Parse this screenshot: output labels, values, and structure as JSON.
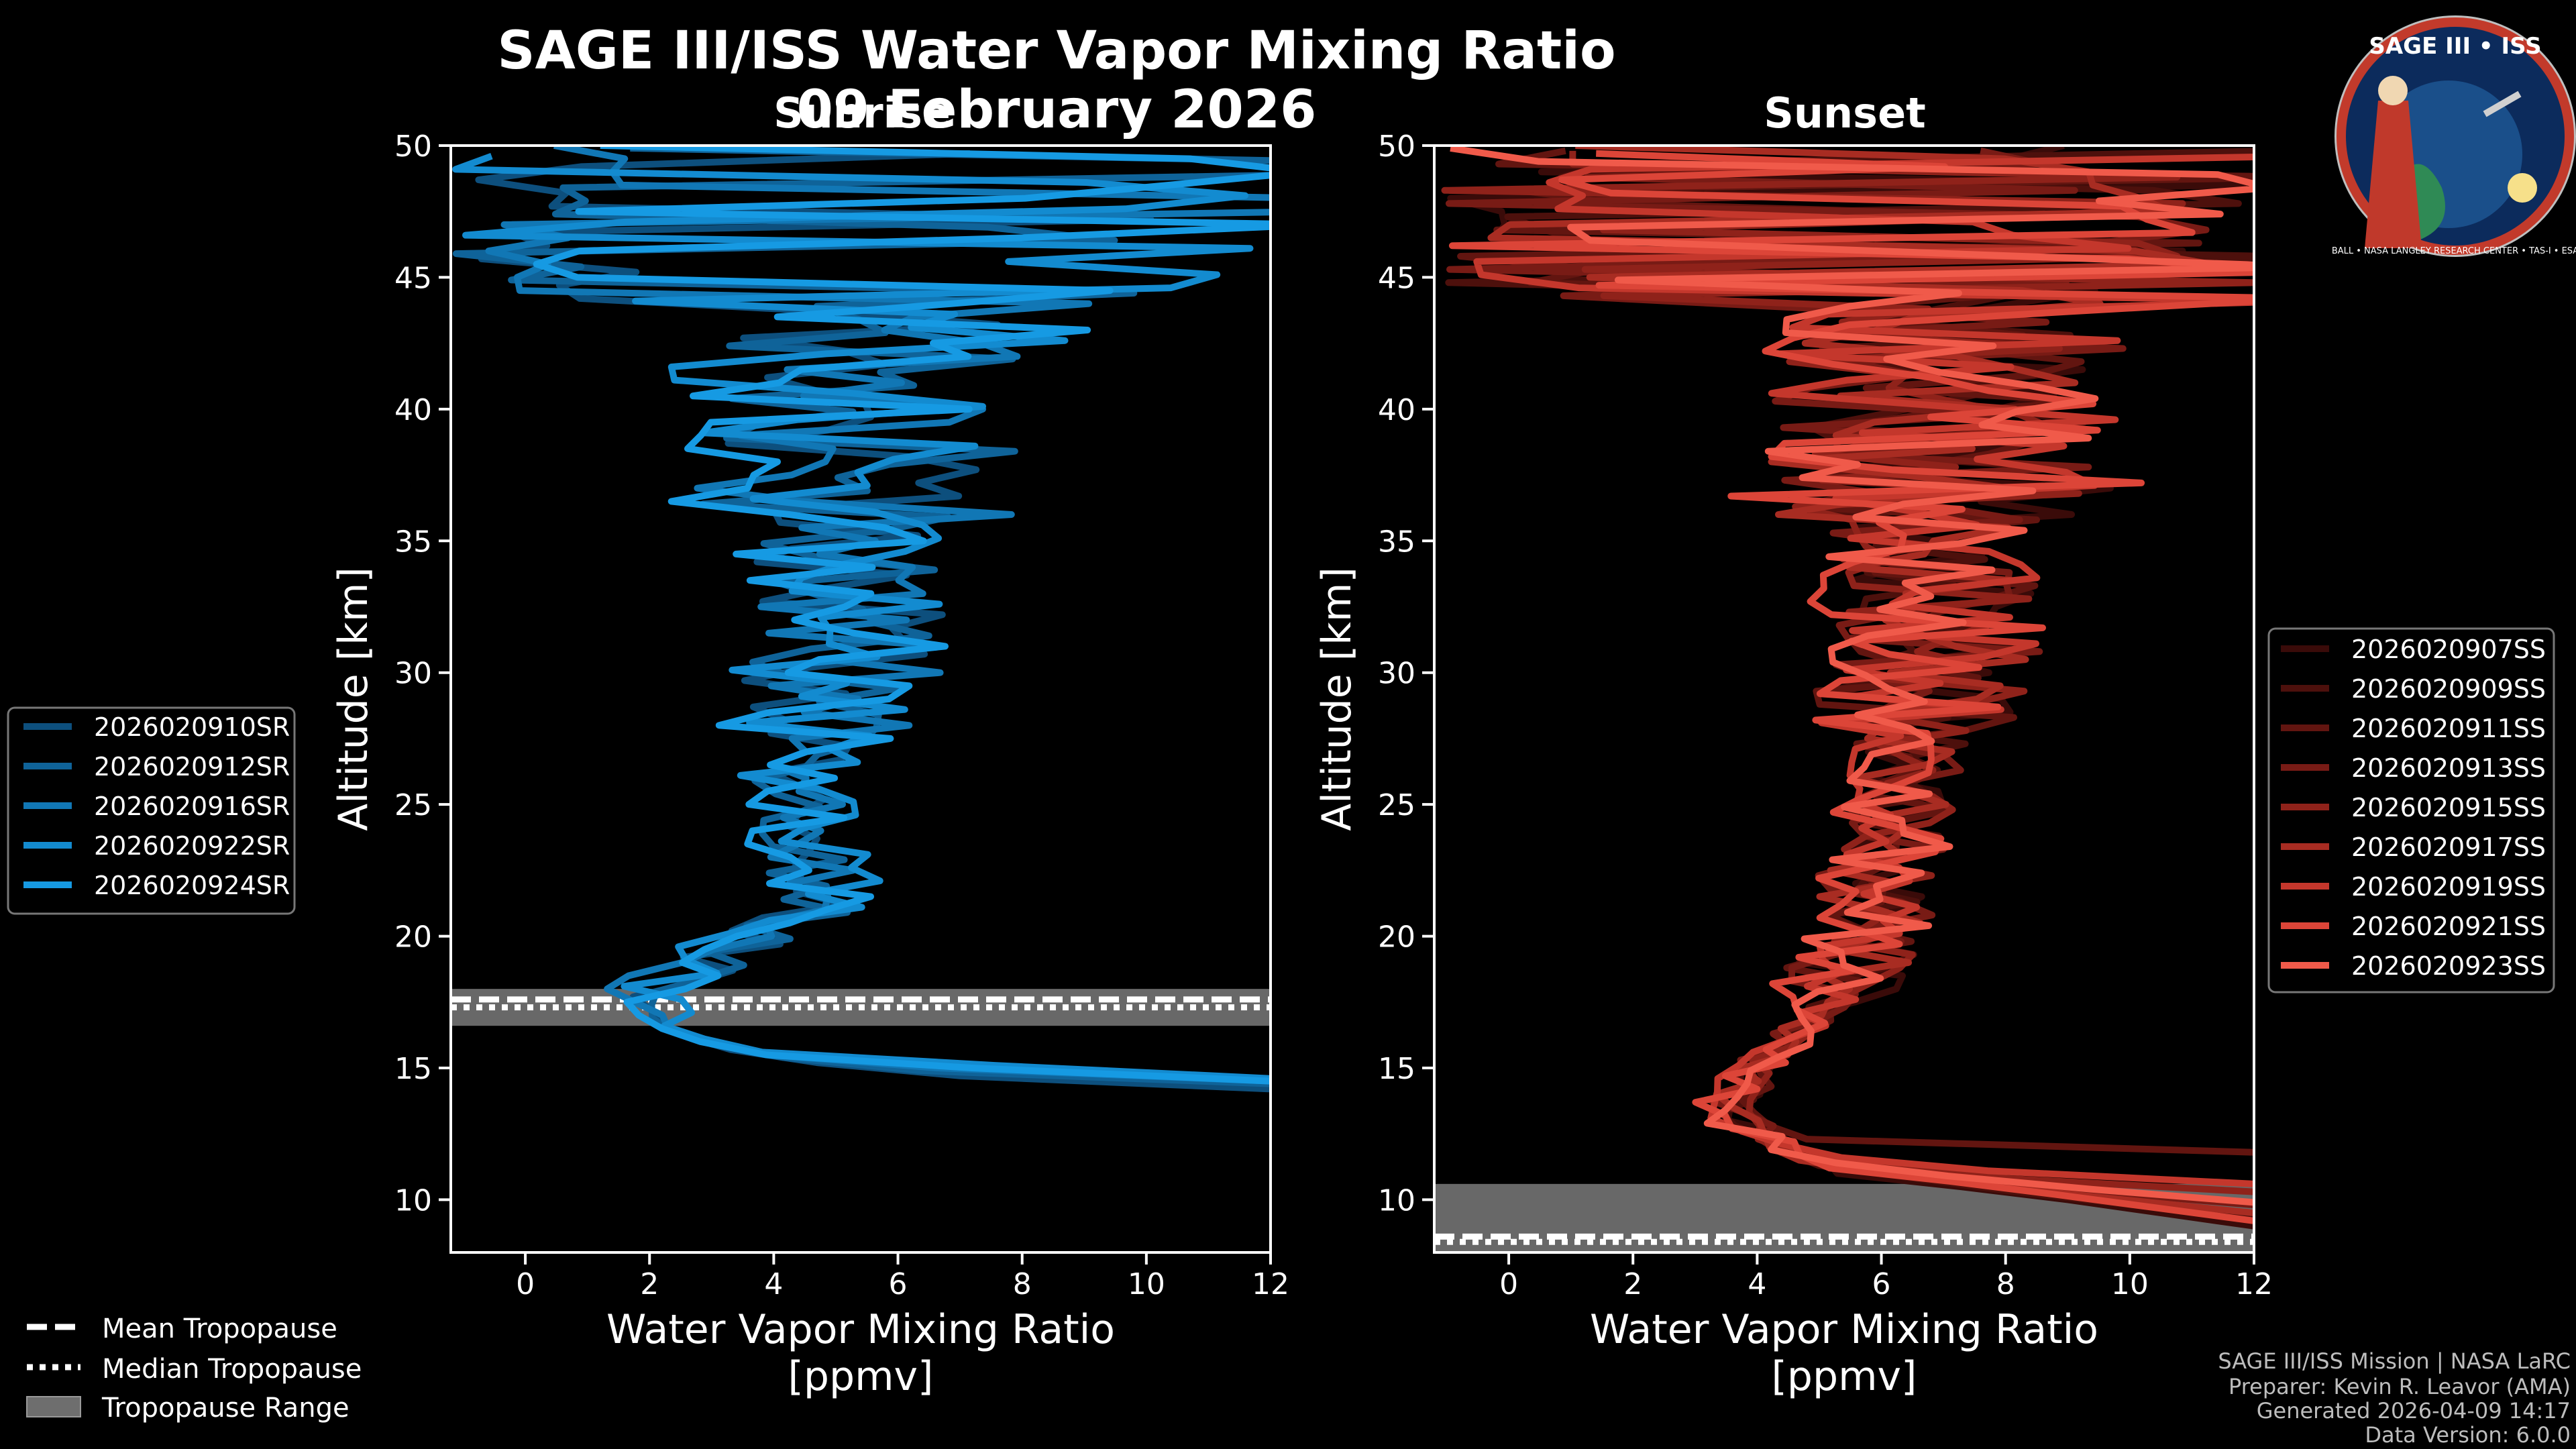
{
  "main_title": "SAGE III/ISS Water Vapor Mixing Ratio",
  "date": "09 February 2026",
  "credits": [
    "SAGE III/ISS Mission | NASA LaRC",
    "Preparer: Kevin R. Leavor (AMA)",
    "Generated 2026-04-09 14:17",
    "Data Version: 6.0.0"
  ],
  "logo": {
    "title": "SAGE III • ISS",
    "ring_text": "BALL • NASA LANGLEY RESEARCH CENTER • TAS-I • ESA"
  },
  "tropo_legend": [
    {
      "label": "Mean Tropopause",
      "style": "dashed"
    },
    {
      "label": "Median Tropopause",
      "style": "dotted"
    },
    {
      "label": "Tropopause Range",
      "style": "patch"
    }
  ],
  "chart_data": [
    {
      "type": "line",
      "panel": "sunrise",
      "title": "Sunrise",
      "xlabel": [
        "Water Vapor Mixing Ratio",
        "[ppmv]"
      ],
      "ylabel": "Altitude [km]",
      "xlim": [
        -1.2,
        12
      ],
      "ylim": [
        8,
        50
      ],
      "xticks": [
        0,
        2,
        4,
        6,
        8,
        10,
        12
      ],
      "yticks": [
        10,
        15,
        20,
        25,
        30,
        35,
        40,
        45,
        50
      ],
      "tropopause": {
        "range": [
          16.6,
          18.0
        ],
        "mean": 17.6,
        "median": 17.3
      },
      "series": [
        {
          "name": "2026020910SR",
          "color": "#0d4f7d",
          "seed": 11,
          "noise_scale": 1.0,
          "lower": [
            [
              14.2,
              12
            ],
            [
              14.8,
              6.0
            ],
            [
              15.6,
              3.4
            ],
            [
              16.5,
              2.5
            ],
            [
              17.5,
              2.0
            ],
            [
              18.3,
              2.3
            ],
            [
              19.5,
              3.6
            ],
            [
              21.5,
              4.8
            ],
            [
              24,
              4.4
            ],
            [
              28,
              4.8
            ],
            [
              33,
              5.3
            ],
            [
              38,
              5.0
            ],
            [
              42,
              5.2
            ],
            [
              44,
              7.0
            ]
          ]
        },
        {
          "name": "2026020912SR",
          "color": "#0f6399",
          "seed": 23,
          "noise_scale": 1.1,
          "lower": [
            [
              14.4,
              12
            ],
            [
              15.0,
              5.2
            ],
            [
              15.8,
              3.1
            ],
            [
              16.8,
              2.2
            ],
            [
              17.6,
              1.9
            ],
            [
              18.5,
              2.5
            ],
            [
              19.8,
              3.8
            ],
            [
              21.8,
              4.9
            ],
            [
              24,
              4.3
            ],
            [
              28,
              4.9
            ],
            [
              33,
              5.4
            ],
            [
              38,
              5.2
            ],
            [
              42,
              5.4
            ],
            [
              44,
              7.2
            ]
          ]
        },
        {
          "name": "2026020916SR",
          "color": "#1177b5",
          "seed": 37,
          "noise_scale": 1.0,
          "lower": [
            [
              14.5,
              12
            ],
            [
              15.2,
              4.5
            ],
            [
              16.0,
              2.9
            ],
            [
              17.0,
              2.1
            ],
            [
              17.8,
              2.0
            ],
            [
              18.7,
              2.6
            ],
            [
              20.0,
              3.9
            ],
            [
              22.0,
              5.0
            ],
            [
              24,
              4.3
            ],
            [
              28,
              4.9
            ],
            [
              33,
              5.4
            ],
            [
              38,
              5.3
            ],
            [
              42,
              5.5
            ],
            [
              44,
              7.4
            ]
          ]
        },
        {
          "name": "2026020922SR",
          "color": "#138bd0",
          "seed": 41,
          "noise_scale": 1.2,
          "lower": [
            [
              14.6,
              12
            ],
            [
              15.5,
              4.0
            ],
            [
              16.2,
              2.7
            ],
            [
              17.1,
              2.2
            ],
            [
              17.9,
              2.1
            ],
            [
              18.8,
              2.8
            ],
            [
              20.2,
              4.0
            ],
            [
              22.2,
              5.1
            ],
            [
              24,
              4.2
            ],
            [
              28,
              4.8
            ],
            [
              33,
              5.3
            ],
            [
              38,
              5.1
            ],
            [
              42,
              5.3
            ],
            [
              44,
              7.0
            ]
          ]
        },
        {
          "name": "2026020924SR",
          "color": "#169ae3",
          "seed": 53,
          "noise_scale": 1.3,
          "lower": [
            [
              14.5,
              12
            ],
            [
              15.3,
              4.3
            ],
            [
              16.1,
              2.6
            ],
            [
              16.9,
              2.3
            ],
            [
              17.6,
              2.0
            ],
            [
              18.6,
              2.7
            ],
            [
              20.0,
              4.1
            ],
            [
              22.0,
              5.0
            ],
            [
              24,
              4.3
            ],
            [
              28,
              5.0
            ],
            [
              33,
              5.5
            ],
            [
              38,
              5.3
            ],
            [
              42,
              5.6
            ],
            [
              44,
              7.5
            ]
          ]
        }
      ]
    },
    {
      "type": "line",
      "panel": "sunset",
      "title": "Sunset",
      "xlabel": [
        "Water Vapor Mixing Ratio",
        "[ppmv]"
      ],
      "ylabel": "Altitude [km]",
      "xlim": [
        -1.2,
        12
      ],
      "ylim": [
        8,
        50
      ],
      "xticks": [
        0,
        2,
        4,
        6,
        8,
        10,
        12
      ],
      "yticks": [
        10,
        15,
        20,
        25,
        30,
        35,
        40,
        45,
        50
      ],
      "tropopause": {
        "range": [
          8.0,
          10.6
        ],
        "mean": 8.6,
        "median": 8.4
      },
      "series": [
        {
          "name": "2026020907SS",
          "color": "#3a0b09",
          "seed": 61,
          "noise_scale": 1.1,
          "lower": [
            [
              9.0,
              12
            ],
            [
              10.0,
              9.0
            ],
            [
              11.0,
              5.5
            ],
            [
              12.0,
              4.2
            ],
            [
              13.5,
              3.8
            ],
            [
              15.5,
              4.3
            ],
            [
              18,
              5.4
            ],
            [
              22,
              6.0
            ],
            [
              27,
              6.5
            ],
            [
              32,
              6.9
            ],
            [
              37,
              7.0
            ],
            [
              42,
              6.8
            ],
            [
              44,
              7.5
            ]
          ]
        },
        {
          "name": "2026020909SS",
          "color": "#4d100c",
          "seed": 67,
          "noise_scale": 1.0,
          "lower": [
            [
              9.3,
              12
            ],
            [
              10.2,
              8.5
            ],
            [
              11.2,
              5.3
            ],
            [
              12.2,
              4.1
            ],
            [
              13.6,
              3.7
            ],
            [
              15.6,
              4.4
            ],
            [
              18,
              5.5
            ],
            [
              22,
              6.1
            ],
            [
              27,
              6.6
            ],
            [
              32,
              7.0
            ],
            [
              37,
              7.1
            ],
            [
              42,
              6.9
            ],
            [
              44,
              7.6
            ]
          ]
        },
        {
          "name": "2026020911SS",
          "color": "#621510",
          "seed": 71,
          "noise_scale": 1.1,
          "lower": [
            [
              11.8,
              12
            ],
            [
              12.0,
              6.0
            ],
            [
              12.4,
              4.4
            ],
            [
              13.4,
              3.9
            ],
            [
              15.4,
              4.2
            ],
            [
              18,
              5.3
            ],
            [
              22,
              5.9
            ],
            [
              27,
              6.4
            ],
            [
              32,
              6.8
            ],
            [
              37,
              6.9
            ],
            [
              42,
              6.7
            ],
            [
              44,
              7.4
            ]
          ]
        },
        {
          "name": "2026020913SS",
          "color": "#781b15",
          "seed": 79,
          "noise_scale": 1.2,
          "lower": [
            [
              9.8,
              12
            ],
            [
              10.6,
              8.0
            ],
            [
              11.4,
              5.0
            ],
            [
              12.4,
              4.0
            ],
            [
              13.6,
              3.6
            ],
            [
              15.6,
              4.3
            ],
            [
              18,
              5.4
            ],
            [
              22,
              6.0
            ],
            [
              27,
              6.5
            ],
            [
              32,
              6.9
            ],
            [
              37,
              7.0
            ],
            [
              42,
              6.8
            ],
            [
              44,
              7.5
            ]
          ]
        },
        {
          "name": "2026020915SS",
          "color": "#8f221a",
          "seed": 83,
          "noise_scale": 1.0,
          "lower": [
            [
              10.3,
              12
            ],
            [
              11.0,
              6.5
            ],
            [
              11.8,
              4.6
            ],
            [
              12.8,
              3.8
            ],
            [
              13.8,
              3.7
            ],
            [
              15.8,
              4.4
            ],
            [
              18,
              5.5
            ],
            [
              22,
              6.1
            ],
            [
              27,
              6.6
            ],
            [
              32,
              7.0
            ],
            [
              37,
              7.1
            ],
            [
              42,
              6.9
            ],
            [
              44,
              7.6
            ]
          ]
        },
        {
          "name": "2026020917SS",
          "color": "#a82c22",
          "seed": 89,
          "noise_scale": 1.1,
          "lower": [
            [
              9.5,
              12
            ],
            [
              10.4,
              8.2
            ],
            [
              11.3,
              5.1
            ],
            [
              12.3,
              4.0
            ],
            [
              13.4,
              3.4
            ],
            [
              15.4,
              4.2
            ],
            [
              18,
              5.3
            ],
            [
              22,
              6.0
            ],
            [
              27,
              6.5
            ],
            [
              32,
              6.9
            ],
            [
              37,
              7.0
            ],
            [
              42,
              6.8
            ],
            [
              44,
              7.5
            ]
          ]
        },
        {
          "name": "2026020919SS",
          "color": "#c4372c",
          "seed": 97,
          "noise_scale": 1.2,
          "lower": [
            [
              10.6,
              12
            ],
            [
              11.3,
              6.0
            ],
            [
              12.0,
              4.5
            ],
            [
              12.9,
              3.7
            ],
            [
              13.9,
              3.5
            ],
            [
              15.9,
              4.4
            ],
            [
              18,
              5.5
            ],
            [
              22,
              6.1
            ],
            [
              27,
              6.6
            ],
            [
              32,
              7.0
            ],
            [
              37,
              7.2
            ],
            [
              42,
              7.0
            ],
            [
              44,
              7.7
            ]
          ]
        },
        {
          "name": "2026020921SS",
          "color": "#dc4538",
          "seed": 101,
          "noise_scale": 1.3,
          "lower": [
            [
              9.2,
              12
            ],
            [
              10.2,
              8.8
            ],
            [
              11.2,
              5.4
            ],
            [
              12.2,
              4.1
            ],
            [
              13.3,
              3.2
            ],
            [
              15.3,
              4.1
            ],
            [
              18,
              5.2
            ],
            [
              22,
              5.9
            ],
            [
              27,
              6.4
            ],
            [
              32,
              6.8
            ],
            [
              37,
              6.9
            ],
            [
              42,
              6.7
            ],
            [
              44,
              7.4
            ]
          ]
        },
        {
          "name": "2026020923SS",
          "color": "#f05a4a",
          "seed": 107,
          "noise_scale": 1.3,
          "lower": [
            [
              9.9,
              12
            ],
            [
              10.7,
              7.8
            ],
            [
              11.5,
              4.9
            ],
            [
              12.4,
              3.9
            ],
            [
              13.5,
              3.3
            ],
            [
              15.5,
              4.2
            ],
            [
              18,
              5.4
            ],
            [
              22,
              6.0
            ],
            [
              27,
              6.5
            ],
            [
              32,
              6.9
            ],
            [
              37,
              7.0
            ],
            [
              42,
              6.8
            ],
            [
              44,
              7.5
            ]
          ]
        }
      ]
    }
  ]
}
